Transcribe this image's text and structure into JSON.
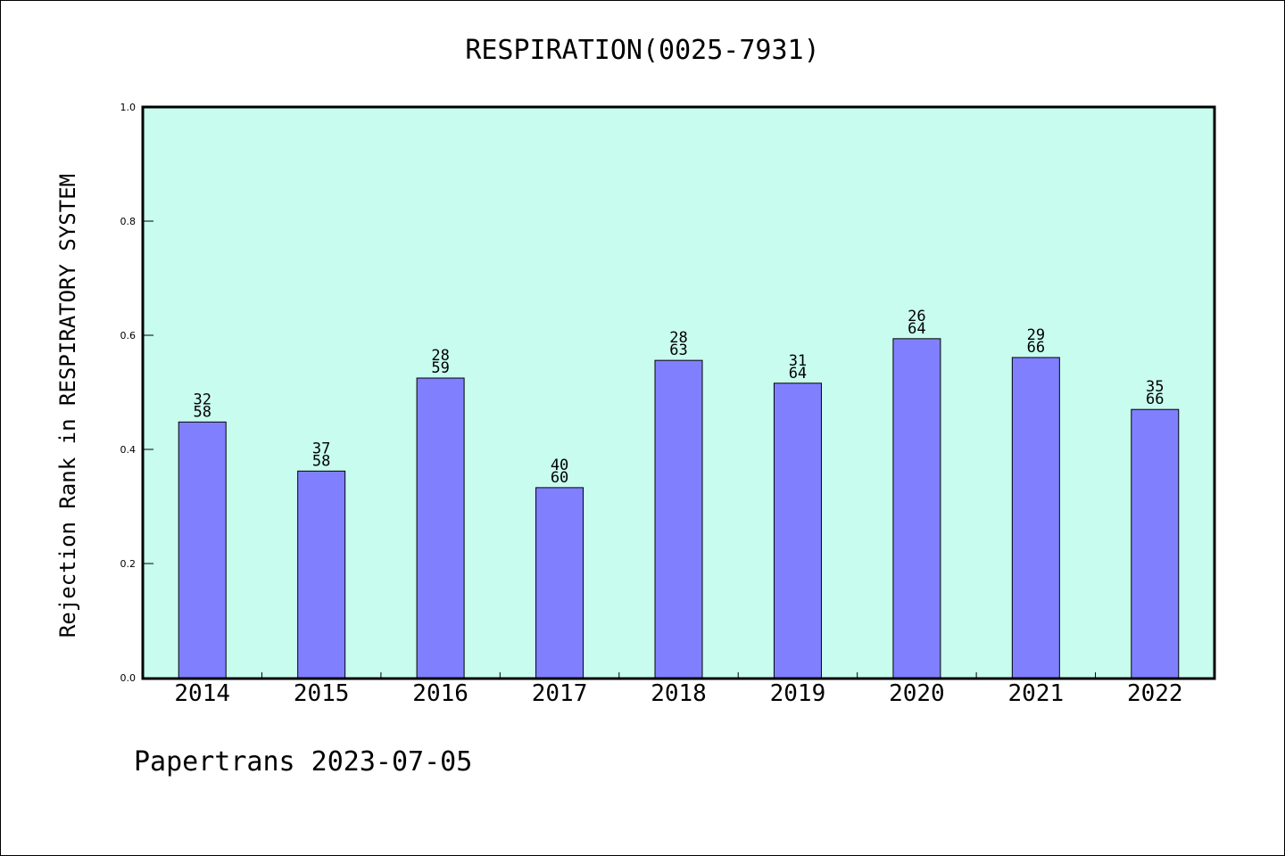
{
  "chart_data": {
    "type": "bar",
    "title": "RESPIRATION(0025-7931)",
    "ylabel": "Rejection Rank in RESPIRATORY SYSTEM",
    "xlabel": "",
    "categories": [
      "2014",
      "2015",
      "2016",
      "2017",
      "2018",
      "2019",
      "2020",
      "2021",
      "2022"
    ],
    "values": [
      0.448,
      0.362,
      0.525,
      0.333,
      0.556,
      0.516,
      0.594,
      0.561,
      0.47
    ],
    "labels_top": [
      "32",
      "37",
      "28",
      "40",
      "28",
      "31",
      "26",
      "29",
      "35"
    ],
    "labels_bottom": [
      "58",
      "58",
      "59",
      "60",
      "63",
      "64",
      "64",
      "66",
      "66"
    ],
    "ylim": [
      0,
      1.0
    ],
    "yticks": [
      "0.0",
      "0.2",
      "0.4",
      "0.6",
      "0.8",
      "1.0"
    ],
    "grid": false,
    "colors": {
      "bar": "#8080ff",
      "plot_bg": "#c8fcee",
      "axis": "#000000"
    }
  },
  "footer": {
    "text": "Papertrans 2023-07-05"
  }
}
